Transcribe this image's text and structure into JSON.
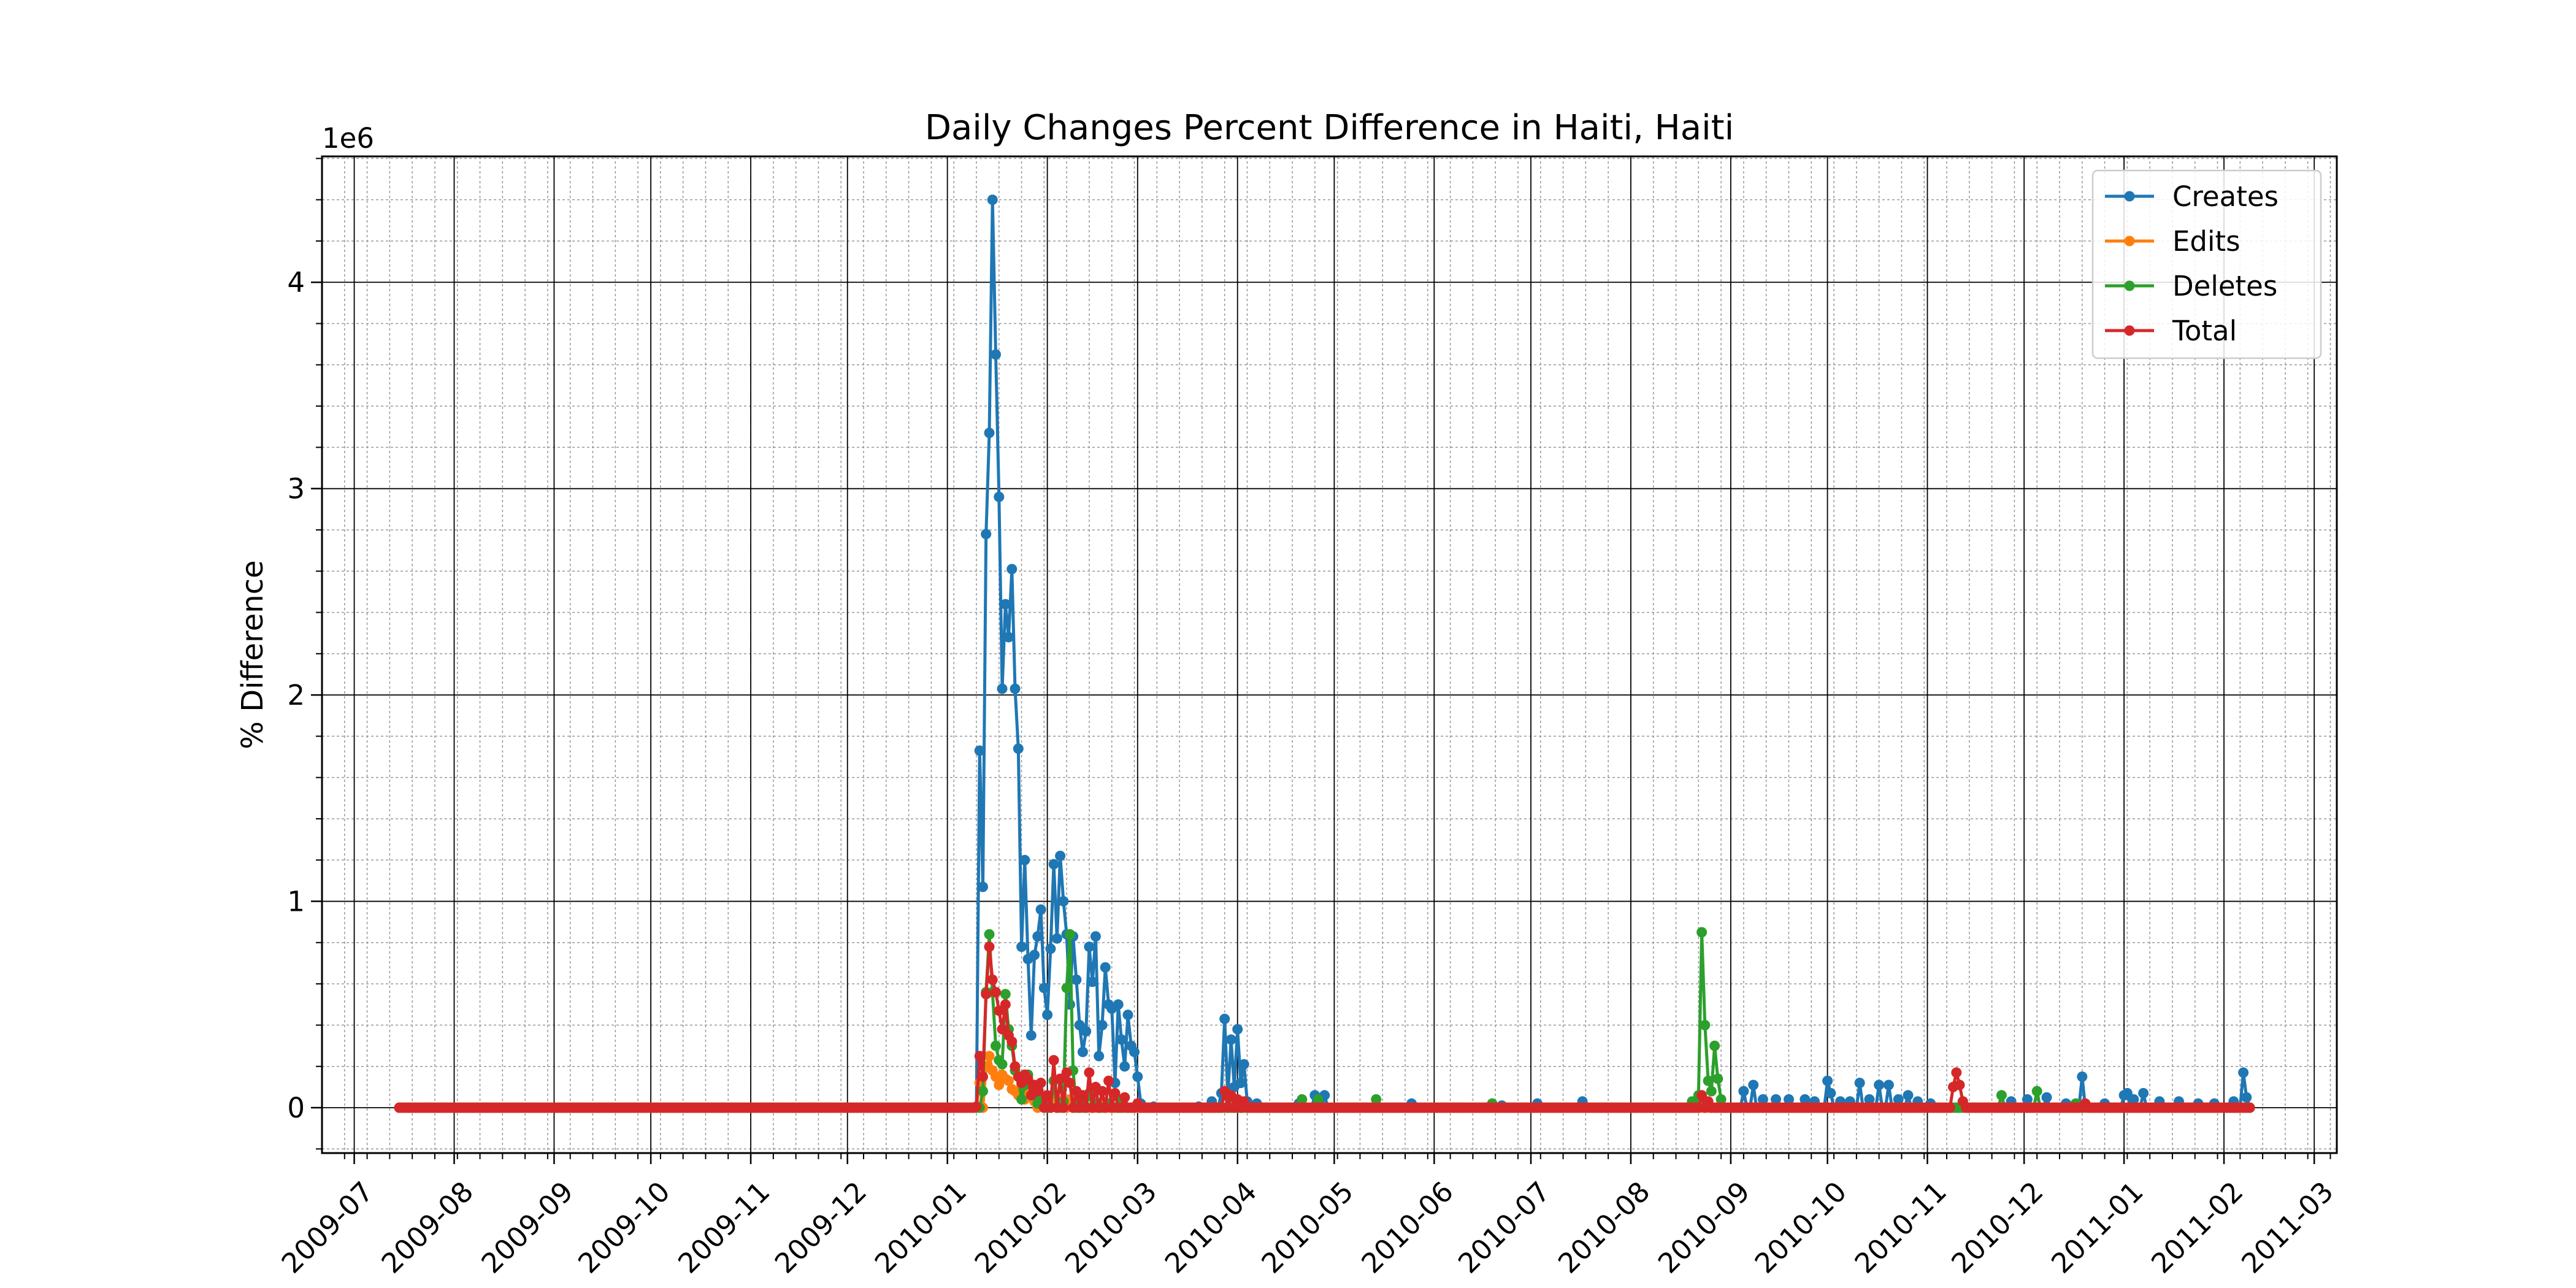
{
  "chart_data": {
    "type": "line",
    "title": "Daily Changes Percent Difference in Haiti, Haiti",
    "xlabel": "",
    "ylabel": "% Difference",
    "y_offset_label": "1e6",
    "x_type": "date",
    "xlim": [
      "2009-06-21",
      "2011-03-08"
    ],
    "ylim": [
      -220000,
      4610000
    ],
    "x_ticks": [
      "2009-07-01",
      "2009-08-01",
      "2009-09-01",
      "2009-10-01",
      "2009-11-01",
      "2009-12-01",
      "2010-01-01",
      "2010-02-01",
      "2010-03-01",
      "2010-04-01",
      "2010-05-01",
      "2010-06-01",
      "2010-07-01",
      "2010-08-01",
      "2010-09-01",
      "2010-10-01",
      "2010-11-01",
      "2010-12-01",
      "2011-01-01",
      "2011-02-01",
      "2011-03-01"
    ],
    "x_tick_labels": [
      "2009-07",
      "2009-08",
      "2009-09",
      "2009-10",
      "2009-11",
      "2009-12",
      "2010-01",
      "2010-02",
      "2010-03",
      "2010-04",
      "2010-05",
      "2010-06",
      "2010-07",
      "2010-08",
      "2010-09",
      "2010-10",
      "2010-11",
      "2010-12",
      "2011-01",
      "2011-02",
      "2011-03"
    ],
    "y_ticks": [
      0,
      1000000,
      2000000,
      3000000,
      4000000
    ],
    "y_tick_labels": [
      "0",
      "1",
      "2",
      "3",
      "4"
    ],
    "grid": "major and minor",
    "legend_position": "top-right",
    "baseline_range": [
      "2009-07-15",
      "2011-02-09"
    ],
    "series": [
      {
        "name": "Creates",
        "color": "#1f77b4",
        "points": [
          [
            "2010-01-10",
            5000
          ],
          [
            "2010-01-11",
            1730000
          ],
          [
            "2010-01-12",
            1070000
          ],
          [
            "2010-01-13",
            2780000
          ],
          [
            "2010-01-14",
            3270000
          ],
          [
            "2010-01-15",
            4400000
          ],
          [
            "2010-01-16",
            3650000
          ],
          [
            "2010-01-17",
            2960000
          ],
          [
            "2010-01-18",
            2030000
          ],
          [
            "2010-01-19",
            2440000
          ],
          [
            "2010-01-20",
            2280000
          ],
          [
            "2010-01-21",
            2610000
          ],
          [
            "2010-01-22",
            2030000
          ],
          [
            "2010-01-23",
            1740000
          ],
          [
            "2010-01-24",
            780000
          ],
          [
            "2010-01-25",
            1200000
          ],
          [
            "2010-01-26",
            720000
          ],
          [
            "2010-01-27",
            350000
          ],
          [
            "2010-01-28",
            740000
          ],
          [
            "2010-01-29",
            830000
          ],
          [
            "2010-01-30",
            960000
          ],
          [
            "2010-01-31",
            580000
          ],
          [
            "2010-02-01",
            450000
          ],
          [
            "2010-02-02",
            770000
          ],
          [
            "2010-02-03",
            1180000
          ],
          [
            "2010-02-04",
            820000
          ],
          [
            "2010-02-05",
            1220000
          ],
          [
            "2010-02-06",
            1000000
          ],
          [
            "2010-02-07",
            840000
          ],
          [
            "2010-02-08",
            500000
          ],
          [
            "2010-02-09",
            830000
          ],
          [
            "2010-02-10",
            620000
          ],
          [
            "2010-02-11",
            400000
          ],
          [
            "2010-02-12",
            270000
          ],
          [
            "2010-02-13",
            370000
          ],
          [
            "2010-02-14",
            780000
          ],
          [
            "2010-02-15",
            610000
          ],
          [
            "2010-02-16",
            830000
          ],
          [
            "2010-02-17",
            250000
          ],
          [
            "2010-02-18",
            400000
          ],
          [
            "2010-02-19",
            680000
          ],
          [
            "2010-02-20",
            500000
          ],
          [
            "2010-02-21",
            480000
          ],
          [
            "2010-02-22",
            120000
          ],
          [
            "2010-02-23",
            500000
          ],
          [
            "2010-02-24",
            330000
          ],
          [
            "2010-02-25",
            200000
          ],
          [
            "2010-02-26",
            450000
          ],
          [
            "2010-02-27",
            300000
          ],
          [
            "2010-02-28",
            270000
          ],
          [
            "2010-03-01",
            150000
          ],
          [
            "2010-03-02",
            20000
          ],
          [
            "2010-03-06",
            5000
          ],
          [
            "2010-03-20",
            5000
          ],
          [
            "2010-03-24",
            30000
          ],
          [
            "2010-03-27",
            70000
          ],
          [
            "2010-03-28",
            430000
          ],
          [
            "2010-03-29",
            60000
          ],
          [
            "2010-03-30",
            330000
          ],
          [
            "2010-03-31",
            100000
          ],
          [
            "2010-04-01",
            380000
          ],
          [
            "2010-04-02",
            120000
          ],
          [
            "2010-04-03",
            210000
          ],
          [
            "2010-04-04",
            30000
          ],
          [
            "2010-04-07",
            20000
          ],
          [
            "2010-04-20",
            20000
          ],
          [
            "2010-04-25",
            60000
          ],
          [
            "2010-04-28",
            60000
          ],
          [
            "2010-05-25",
            20000
          ],
          [
            "2010-06-22",
            10000
          ],
          [
            "2010-07-03",
            20000
          ],
          [
            "2010-07-17",
            30000
          ],
          [
            "2010-08-24",
            20000
          ],
          [
            "2010-09-05",
            80000
          ],
          [
            "2010-09-08",
            110000
          ],
          [
            "2010-09-11",
            40000
          ],
          [
            "2010-09-15",
            40000
          ],
          [
            "2010-09-19",
            40000
          ],
          [
            "2010-09-24",
            40000
          ],
          [
            "2010-09-27",
            30000
          ],
          [
            "2010-10-01",
            130000
          ],
          [
            "2010-10-02",
            70000
          ],
          [
            "2010-10-05",
            30000
          ],
          [
            "2010-10-08",
            30000
          ],
          [
            "2010-10-11",
            120000
          ],
          [
            "2010-10-14",
            40000
          ],
          [
            "2010-10-17",
            110000
          ],
          [
            "2010-10-20",
            110000
          ],
          [
            "2010-10-23",
            40000
          ],
          [
            "2010-10-26",
            60000
          ],
          [
            "2010-10-29",
            30000
          ],
          [
            "2010-11-02",
            20000
          ],
          [
            "2010-11-12",
            30000
          ],
          [
            "2010-11-27",
            30000
          ],
          [
            "2010-12-02",
            40000
          ],
          [
            "2010-12-08",
            50000
          ],
          [
            "2010-12-14",
            20000
          ],
          [
            "2010-12-19",
            150000
          ],
          [
            "2010-12-26",
            20000
          ],
          [
            "2011-01-01",
            60000
          ],
          [
            "2011-01-02",
            70000
          ],
          [
            "2011-01-04",
            40000
          ],
          [
            "2011-01-07",
            70000
          ],
          [
            "2011-01-12",
            30000
          ],
          [
            "2011-01-18",
            30000
          ],
          [
            "2011-01-24",
            20000
          ],
          [
            "2011-01-29",
            20000
          ],
          [
            "2011-02-04",
            30000
          ],
          [
            "2011-02-07",
            170000
          ],
          [
            "2011-02-08",
            50000
          ],
          [
            "2011-02-09",
            0
          ]
        ]
      },
      {
        "name": "Edits",
        "color": "#ff7f0e",
        "points": [
          [
            "2010-01-11",
            120000
          ],
          [
            "2010-01-13",
            200000
          ],
          [
            "2010-01-14",
            250000
          ],
          [
            "2010-01-15",
            180000
          ],
          [
            "2010-01-16",
            150000
          ],
          [
            "2010-01-17",
            110000
          ],
          [
            "2010-01-18",
            160000
          ],
          [
            "2010-01-19",
            140000
          ],
          [
            "2010-01-20",
            130000
          ],
          [
            "2010-01-21",
            90000
          ],
          [
            "2010-01-22",
            80000
          ],
          [
            "2010-01-23",
            60000
          ],
          [
            "2010-01-24",
            110000
          ],
          [
            "2010-01-25",
            40000
          ],
          [
            "2010-01-26",
            90000
          ],
          [
            "2010-01-27",
            60000
          ],
          [
            "2010-01-28",
            30000
          ],
          [
            "2010-01-30",
            40000
          ],
          [
            "2010-02-03",
            50000
          ],
          [
            "2010-02-05",
            30000
          ],
          [
            "2010-02-08",
            40000
          ],
          [
            "2010-02-12",
            20000
          ],
          [
            "2010-02-19",
            20000
          ]
        ]
      },
      {
        "name": "Deletes",
        "color": "#2ca02c",
        "points": [
          [
            "2010-01-12",
            80000
          ],
          [
            "2010-01-13",
            560000
          ],
          [
            "2010-01-14",
            840000
          ],
          [
            "2010-01-15",
            560000
          ],
          [
            "2010-01-16",
            300000
          ],
          [
            "2010-01-17",
            230000
          ],
          [
            "2010-01-18",
            210000
          ],
          [
            "2010-01-19",
            550000
          ],
          [
            "2010-01-20",
            380000
          ],
          [
            "2010-01-21",
            300000
          ],
          [
            "2010-01-22",
            180000
          ],
          [
            "2010-01-23",
            150000
          ],
          [
            "2010-01-24",
            40000
          ],
          [
            "2010-01-25",
            110000
          ],
          [
            "2010-01-26",
            160000
          ],
          [
            "2010-01-27",
            60000
          ],
          [
            "2010-01-28",
            90000
          ],
          [
            "2010-01-29",
            20000
          ],
          [
            "2010-01-30",
            50000
          ],
          [
            "2010-01-31",
            10000
          ],
          [
            "2010-02-03",
            130000
          ],
          [
            "2010-02-06",
            30000
          ],
          [
            "2010-02-07",
            580000
          ],
          [
            "2010-02-08",
            840000
          ],
          [
            "2010-02-09",
            180000
          ],
          [
            "2010-02-11",
            30000
          ],
          [
            "2010-02-14",
            70000
          ],
          [
            "2010-02-16",
            20000
          ],
          [
            "2010-02-20",
            20000
          ],
          [
            "2010-02-24",
            40000
          ],
          [
            "2010-03-01",
            10000
          ],
          [
            "2010-04-21",
            40000
          ],
          [
            "2010-04-26",
            40000
          ],
          [
            "2010-05-14",
            40000
          ],
          [
            "2010-06-19",
            20000
          ],
          [
            "2010-08-20",
            30000
          ],
          [
            "2010-08-22",
            60000
          ],
          [
            "2010-08-23",
            850000
          ],
          [
            "2010-08-24",
            400000
          ],
          [
            "2010-08-25",
            130000
          ],
          [
            "2010-08-26",
            80000
          ],
          [
            "2010-08-27",
            300000
          ],
          [
            "2010-08-28",
            140000
          ],
          [
            "2010-08-29",
            40000
          ],
          [
            "2010-11-24",
            60000
          ],
          [
            "2010-12-05",
            80000
          ],
          [
            "2010-12-17",
            20000
          ]
        ]
      },
      {
        "name": "Total",
        "color": "#d62728",
        "points": [
          [
            "2010-01-10",
            5000
          ],
          [
            "2010-01-11",
            250000
          ],
          [
            "2010-01-12",
            150000
          ],
          [
            "2010-01-13",
            550000
          ],
          [
            "2010-01-14",
            780000
          ],
          [
            "2010-01-15",
            620000
          ],
          [
            "2010-01-16",
            560000
          ],
          [
            "2010-01-17",
            470000
          ],
          [
            "2010-01-18",
            380000
          ],
          [
            "2010-01-19",
            500000
          ],
          [
            "2010-01-20",
            350000
          ],
          [
            "2010-01-21",
            320000
          ],
          [
            "2010-01-22",
            200000
          ],
          [
            "2010-01-23",
            150000
          ],
          [
            "2010-01-24",
            120000
          ],
          [
            "2010-01-25",
            160000
          ],
          [
            "2010-01-26",
            140000
          ],
          [
            "2010-01-27",
            60000
          ],
          [
            "2010-01-28",
            110000
          ],
          [
            "2010-01-29",
            80000
          ],
          [
            "2010-01-30",
            120000
          ],
          [
            "2010-02-01",
            60000
          ],
          [
            "2010-02-03",
            230000
          ],
          [
            "2010-02-05",
            140000
          ],
          [
            "2010-02-07",
            170000
          ],
          [
            "2010-02-08",
            120000
          ],
          [
            "2010-02-10",
            80000
          ],
          [
            "2010-02-12",
            60000
          ],
          [
            "2010-02-14",
            170000
          ],
          [
            "2010-02-16",
            100000
          ],
          [
            "2010-02-18",
            80000
          ],
          [
            "2010-02-20",
            130000
          ],
          [
            "2010-02-22",
            70000
          ],
          [
            "2010-02-25",
            50000
          ],
          [
            "2010-03-01",
            20000
          ],
          [
            "2010-03-28",
            80000
          ],
          [
            "2010-03-30",
            60000
          ],
          [
            "2010-04-01",
            40000
          ],
          [
            "2010-04-03",
            30000
          ],
          [
            "2010-08-23",
            60000
          ],
          [
            "2010-08-25",
            30000
          ],
          [
            "2010-11-09",
            100000
          ],
          [
            "2010-11-10",
            170000
          ],
          [
            "2010-11-11",
            110000
          ],
          [
            "2010-11-12",
            30000
          ],
          [
            "2010-12-20",
            20000
          ]
        ]
      }
    ]
  }
}
